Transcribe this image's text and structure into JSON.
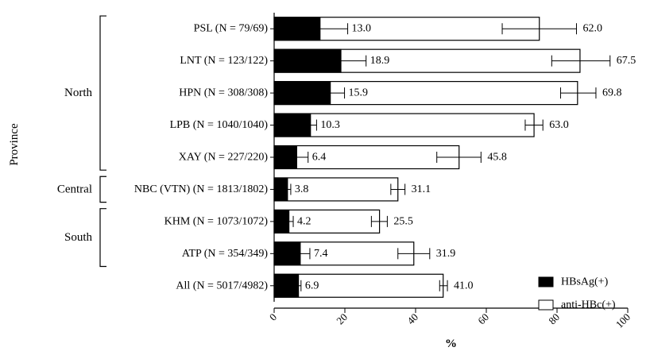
{
  "chart_data": {
    "type": "bar",
    "orientation": "horizontal",
    "stacking": "overlay",
    "categories": [
      "PSL (N = 79/69)",
      "LNT (N = 123/122)",
      "HPN (N = 308/308)",
      "LPB (N = 1040/1040)",
      "XAY (N = 227/220)",
      "NBC (VTN) (N = 1813/1802)",
      "KHM (N = 1073/1072)",
      "ATP (N = 354/349)",
      "All (N = 5017/4982)"
    ],
    "series": [
      {
        "name": "HBsAg(+)",
        "color": "#000000",
        "values": [
          13.0,
          18.9,
          15.9,
          10.3,
          6.4,
          3.8,
          4.2,
          7.4,
          6.9
        ],
        "labels": [
          "13.0",
          "18.9",
          "15.9",
          "10.3",
          "6.4",
          "3.8",
          "4.2",
          "7.4",
          "6.9"
        ],
        "error_low": [
          5.2,
          11.8,
          11.9,
          8.6,
          3.2,
          2.9,
          3.0,
          4.7,
          6.2
        ],
        "error_high": [
          20.8,
          26.0,
          19.9,
          12.0,
          9.6,
          4.7,
          5.4,
          10.1,
          7.6
        ]
      },
      {
        "name": "anti-HBc(+)",
        "color": "#ffffff",
        "values": [
          75.0,
          86.5,
          85.8,
          73.5,
          52.3,
          35.0,
          29.8,
          39.5,
          47.8
        ],
        "labels": [
          "62.0",
          "67.5",
          "69.8",
          "63.0",
          "45.8",
          "31.1",
          "25.5",
          "31.9",
          "41.0"
        ],
        "error_low": [
          64.5,
          78.5,
          81.0,
          71.0,
          46.0,
          33.0,
          27.5,
          35.0,
          46.8
        ],
        "error_high": [
          85.5,
          95.0,
          91.0,
          76.0,
          58.5,
          37.0,
          32.0,
          44.0,
          49.0
        ]
      }
    ],
    "xlim": [
      0,
      100
    ],
    "xticks": [
      0,
      20,
      40,
      60,
      80,
      100
    ],
    "xlabel": "%",
    "ylabel": "Province",
    "groups": [
      {
        "label": "North",
        "from": 0,
        "to": 4
      },
      {
        "label": "Central",
        "from": 5,
        "to": 5
      },
      {
        "label": "South",
        "from": 6,
        "to": 7
      }
    ],
    "legend": {
      "position": "bottom-right"
    }
  }
}
